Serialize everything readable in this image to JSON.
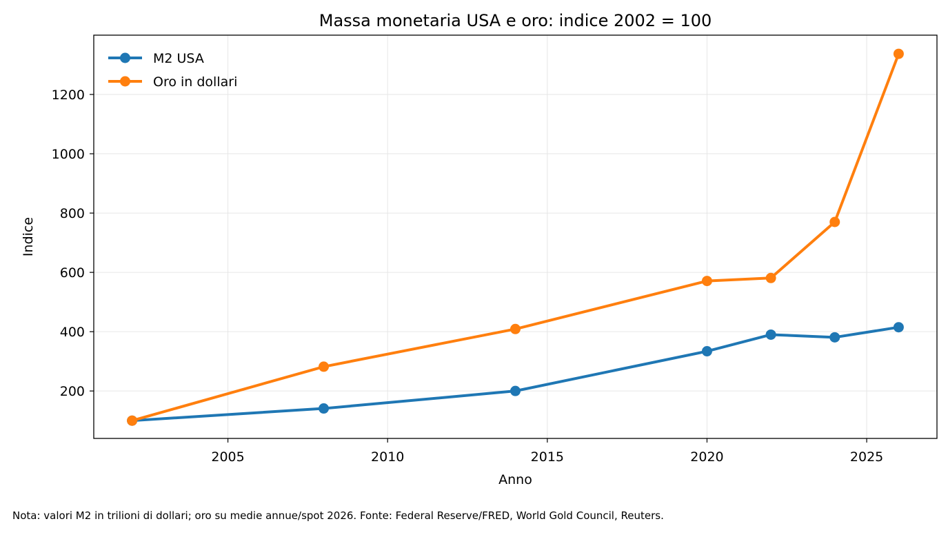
{
  "chart_data": {
    "type": "line",
    "title": "Massa monetaria USA e oro: indice 2002 = 100",
    "xlabel": "Anno",
    "ylabel": "Indice",
    "xlim": [
      2000.8,
      2027.2
    ],
    "ylim": [
      40,
      1400
    ],
    "xticks": [
      2005,
      2010,
      2015,
      2020,
      2025
    ],
    "yticks": [
      200,
      400,
      600,
      800,
      1000,
      1200
    ],
    "grid": true,
    "legend_position": "top-left",
    "x": [
      2002,
      2008,
      2014,
      2020,
      2022,
      2024,
      2026
    ],
    "series": [
      {
        "name": "M2 USA",
        "color": "#1f77b4",
        "values": [
          100,
          141,
          200,
          334,
          390,
          381,
          415
        ]
      },
      {
        "name": "Oro in dollari",
        "color": "#ff7f0e",
        "values": [
          100,
          282,
          409,
          571,
          581,
          770,
          1337
        ]
      }
    ]
  },
  "footnote": "Nota: valori M2 in trilioni di dollari; oro su medie annue/spot 2026. Fonte: Federal Reserve/FRED, World Gold Council, Reuters."
}
